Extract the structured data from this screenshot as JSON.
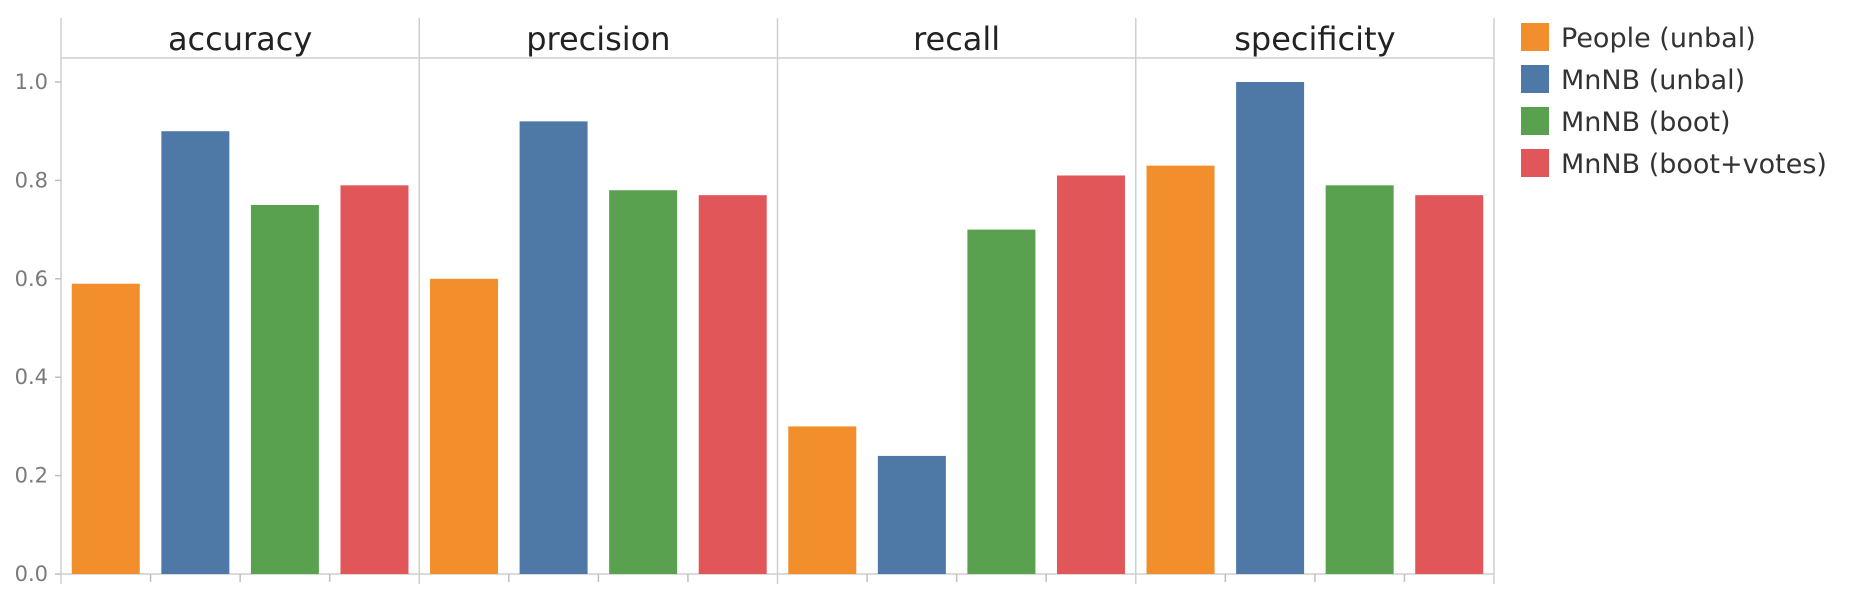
{
  "chart_data": {
    "type": "bar",
    "facets": [
      "accuracy",
      "precision",
      "recall",
      "specificity"
    ],
    "series": [
      {
        "name": "People (unbal)",
        "color": "#f28e2b",
        "values": [
          0.59,
          0.6,
          0.3,
          0.83
        ]
      },
      {
        "name": "MnNB (unbal)",
        "color": "#4e79a7",
        "values": [
          0.9,
          0.92,
          0.24,
          1.0
        ]
      },
      {
        "name": "MnNB (boot)",
        "color": "#59a14f",
        "values": [
          0.75,
          0.78,
          0.7,
          0.79
        ]
      },
      {
        "name": "MnNB (boot+votes)",
        "color": "#e15759",
        "values": [
          0.79,
          0.77,
          0.81,
          0.77
        ]
      }
    ],
    "y_ticks": [
      "0.0",
      "0.2",
      "0.4",
      "0.6",
      "0.8",
      "1.0"
    ],
    "ylim": [
      0,
      1.0
    ],
    "legend_position": "right",
    "grid": false
  }
}
